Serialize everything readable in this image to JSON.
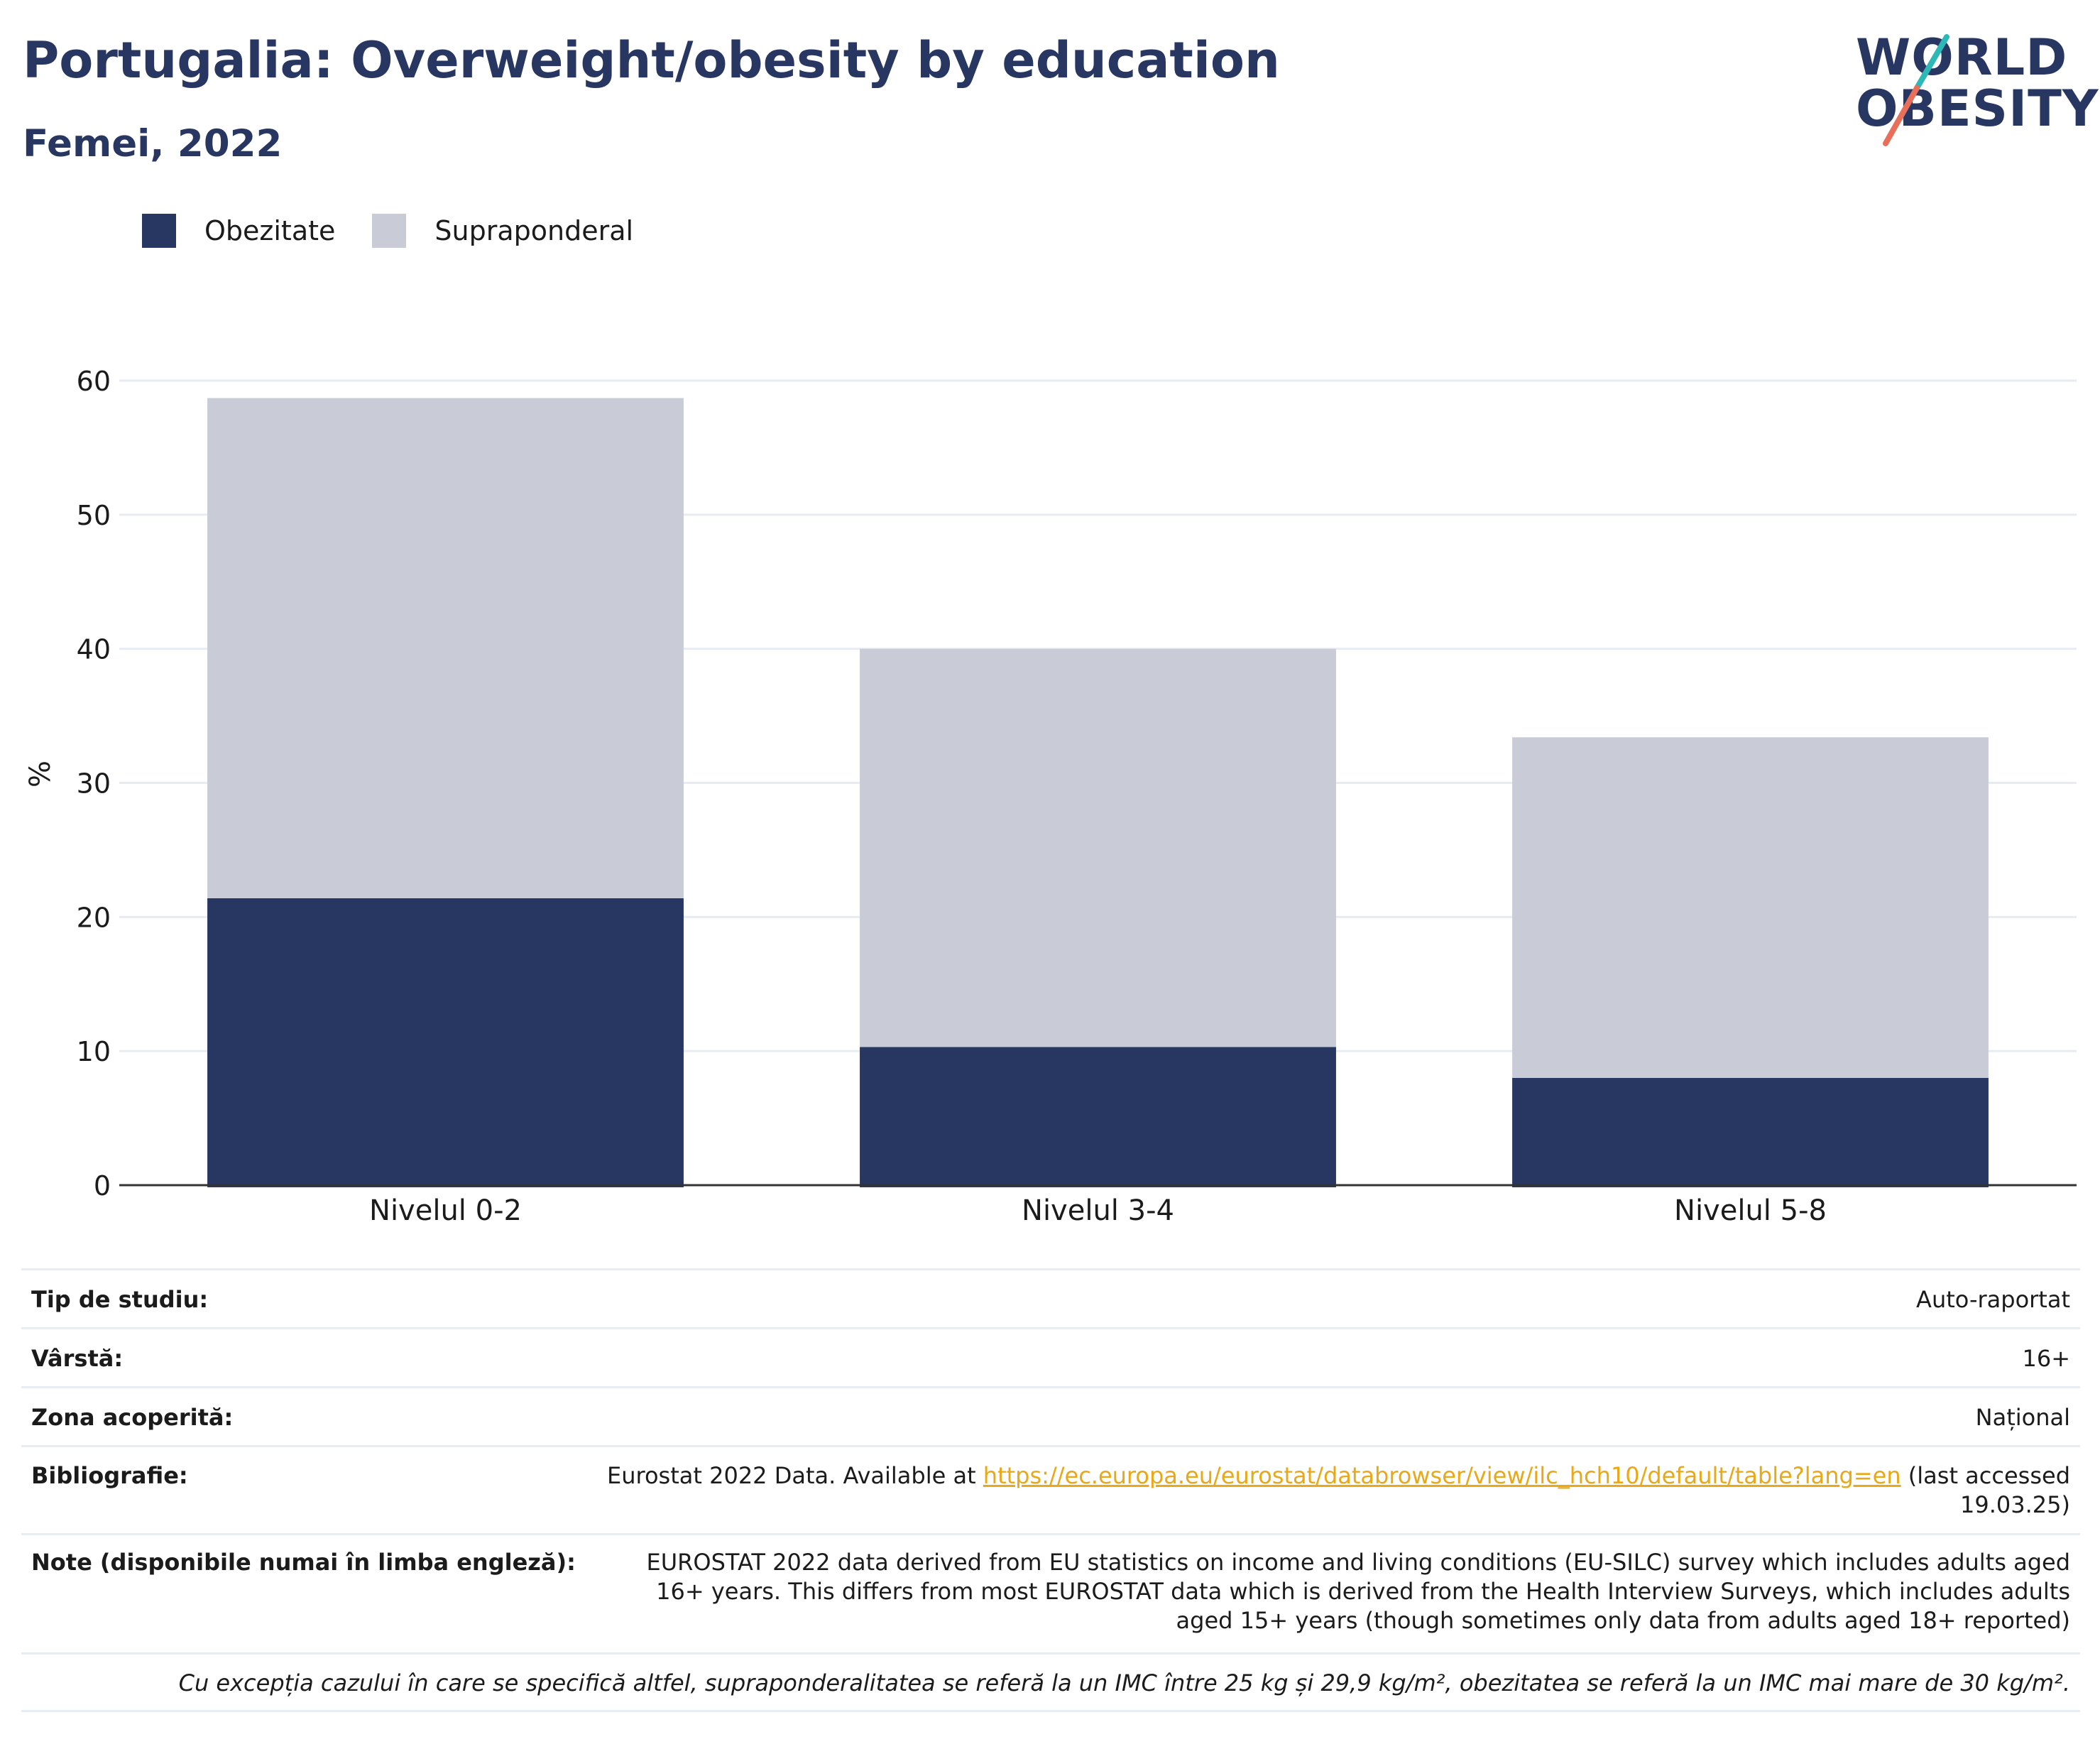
{
  "title": "Portugalia: Overweight/obesity by education",
  "subtitle": "Femei, 2022",
  "logo": {
    "line1": "WORLD",
    "line2": "OBESITY"
  },
  "colors": {
    "obesity": "#283662",
    "overweight": "#c9ccd7",
    "grid": "#e8ebf1",
    "axis": "#333333",
    "accent_teal": "#2bb8b6",
    "accent_coral": "#e8705a"
  },
  "legend": [
    {
      "label": "Obezitate",
      "color": "#283662"
    },
    {
      "label": "Supraponderal",
      "color": "#c9ccd7"
    }
  ],
  "chart_data": {
    "type": "bar",
    "stacked": true,
    "categories": [
      "Nivelul 0-2",
      "Nivelul 3-4",
      "Nivelul 5-8"
    ],
    "series": [
      {
        "name": "Obezitate",
        "values": [
          21.4,
          10.3,
          8.0
        ]
      },
      {
        "name": "Supraponderal",
        "values": [
          37.3,
          29.7,
          25.4
        ]
      }
    ],
    "ylabel": "%",
    "ylim": [
      0,
      60
    ],
    "yticks": [
      0,
      10,
      20,
      30,
      40,
      50,
      60
    ],
    "grid": true,
    "legend_position": "top-left"
  },
  "meta": {
    "rows": [
      {
        "label": "Tip de studiu:",
        "value": "Auto-raportat"
      },
      {
        "label": "Vârstă:",
        "value": "16+"
      },
      {
        "label": "Zona acoperită:",
        "value": "Național"
      }
    ],
    "bibliography": {
      "label": "Bibliografie:",
      "prefix": "Eurostat 2022 Data. Available at ",
      "link": "https://ec.europa.eu/eurostat/databrowser/view/ilc_hch10/default/table?lang=en",
      "suffix": " (last accessed 19.03.25)"
    },
    "notes": {
      "label": "Note (disponibile numai în limba engleză):",
      "value": "EUROSTAT 2022 data derived from EU statistics on income and living conditions (EU-SILC) survey which includes adults aged 16+ years. This differs from most EUROSTAT data which is derived from the Health Interview Surveys, which includes adults aged 15+ years (though sometimes only data from adults aged 18+ reported)"
    },
    "footnote": "Cu excepția cazului în care se specifică altfel, supraponderalitatea se referă la un IMC între 25 kg și 29,9 kg/m², obezitatea se referă la un IMC mai mare de 30 kg/m²."
  }
}
